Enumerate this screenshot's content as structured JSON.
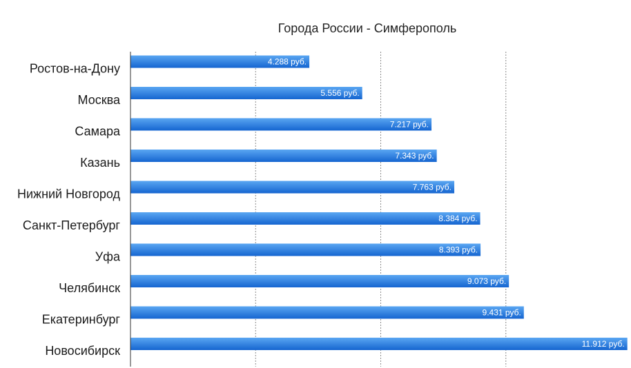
{
  "chart_data": {
    "type": "bar",
    "orientation": "horizontal",
    "title": "Города России - Симферополь",
    "categories": [
      "Ростов-на-Дону",
      "Москва",
      "Самара",
      "Казань",
      "Нижний Новгород",
      "Санкт-Петербург",
      "Уфа",
      "Челябинск",
      "Екатеринбург",
      "Новосибирск"
    ],
    "values": [
      4288,
      5556,
      7217,
      7343,
      7763,
      8384,
      8393,
      9073,
      9431,
      11912
    ],
    "value_labels": [
      "4.288 руб.",
      "5.556 руб.",
      "7.217 руб.",
      "7.343 руб.",
      "7.763 руб.",
      "8.384 руб.",
      "8.393 руб.",
      "9.073 руб.",
      "9.431 руб.",
      "11.912 руб."
    ],
    "xlim": [
      0,
      12000
    ],
    "grid": true,
    "colors": {
      "bar_top": "#5aa6f2",
      "bar_bottom": "#1565d0"
    }
  }
}
